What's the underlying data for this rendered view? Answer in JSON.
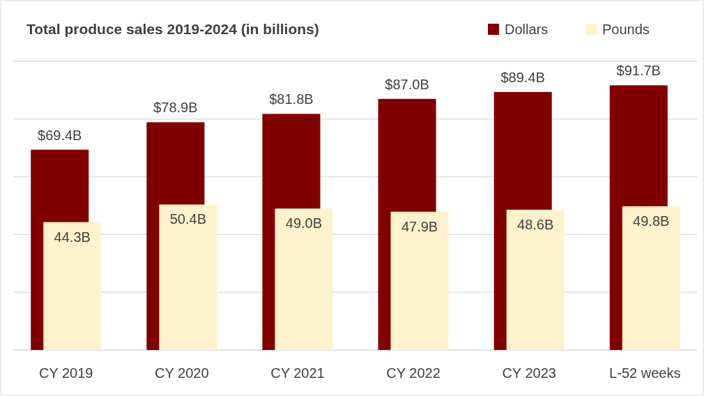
{
  "chart_data": {
    "type": "bar",
    "title": "Total produce sales 2019-2024 (in billions)",
    "categories": [
      "CY 2019",
      "CY 2020",
      "CY 2021",
      "CY 2022",
      "CY 2023",
      "L-52 weeks"
    ],
    "series": [
      {
        "name": "Dollars",
        "color": "#800000",
        "values": [
          69.4,
          78.9,
          81.8,
          87.0,
          89.4,
          91.7
        ],
        "value_labels": [
          "$69.4B",
          "$78.9B",
          "$81.8B",
          "$87.0B",
          "$89.4B",
          "$91.7B"
        ]
      },
      {
        "name": "Pounds",
        "color": "#fff2cc",
        "values": [
          44.3,
          50.4,
          49.0,
          47.9,
          48.6,
          49.8
        ],
        "value_labels": [
          "44.3B",
          "50.4B",
          "49.0B",
          "47.9B",
          "48.6B",
          "49.8B"
        ]
      }
    ],
    "ylim": [
      0,
      100
    ],
    "yticks": [
      {
        "value": 0,
        "label": null
      },
      {
        "value": 20,
        "label": null
      },
      {
        "value": 40,
        "label": null
      },
      {
        "value": 60,
        "label": null
      },
      {
        "value": 80,
        "label": null
      },
      {
        "value": 100,
        "label": null
      }
    ],
    "tick_labels": "x",
    "grid": "y",
    "legend": "top right"
  }
}
